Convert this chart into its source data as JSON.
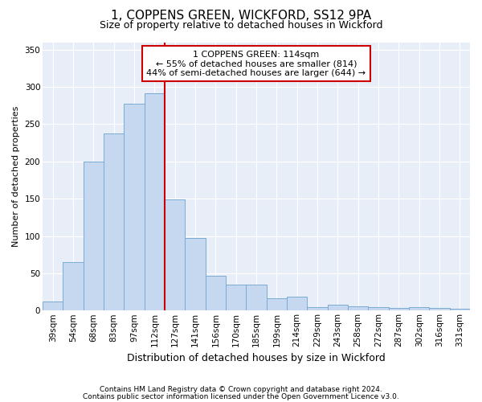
{
  "title_line1": "1, COPPENS GREEN, WICKFORD, SS12 9PA",
  "title_line2": "Size of property relative to detached houses in Wickford",
  "xlabel": "Distribution of detached houses by size in Wickford",
  "ylabel": "Number of detached properties",
  "categories": [
    "39sqm",
    "54sqm",
    "68sqm",
    "83sqm",
    "97sqm",
    "112sqm",
    "127sqm",
    "141sqm",
    "156sqm",
    "170sqm",
    "185sqm",
    "199sqm",
    "214sqm",
    "229sqm",
    "243sqm",
    "258sqm",
    "272sqm",
    "287sqm",
    "302sqm",
    "316sqm",
    "331sqm"
  ],
  "values": [
    12,
    65,
    200,
    238,
    278,
    291,
    149,
    97,
    47,
    35,
    35,
    17,
    19,
    5,
    8,
    6,
    5,
    3,
    5,
    3,
    2
  ],
  "bar_color": "#c5d8f0",
  "bar_edge_color": "#7aaad4",
  "vline_x_index": 5,
  "vline_color": "#cc0000",
  "annotation_lines": [
    "1 COPPENS GREEN: 114sqm",
    "← 55% of detached houses are smaller (814)",
    "44% of semi-detached houses are larger (644) →"
  ],
  "annotation_box_color": "#cc0000",
  "ylim": [
    0,
    360
  ],
  "yticks": [
    0,
    50,
    100,
    150,
    200,
    250,
    300,
    350
  ],
  "footnote1": "Contains HM Land Registry data © Crown copyright and database right 2024.",
  "footnote2": "Contains public sector information licensed under the Open Government Licence v3.0.",
  "bg_color": "#ffffff",
  "plot_bg_color": "#e8eef8",
  "grid_color": "#ffffff",
  "title1_fontsize": 11,
  "title2_fontsize": 9,
  "ylabel_fontsize": 8,
  "xlabel_fontsize": 9,
  "tick_fontsize": 7.5,
  "footnote_fontsize": 6.5
}
